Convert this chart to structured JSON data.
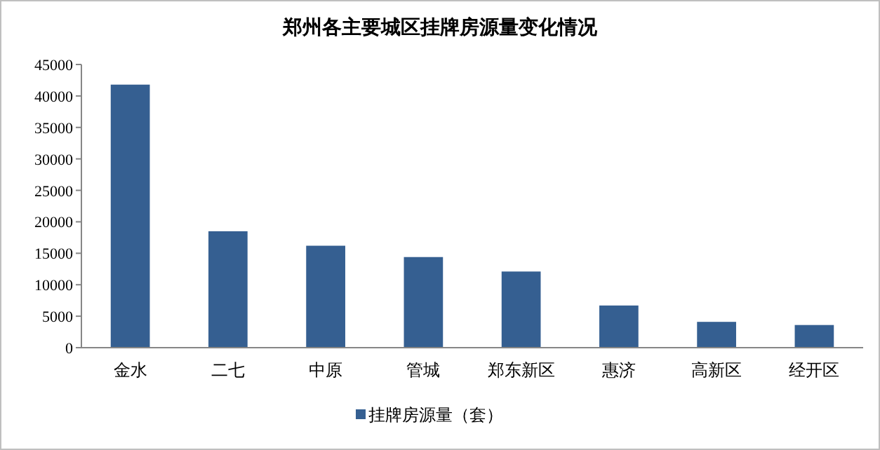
{
  "chart_data": {
    "type": "bar",
    "title": "郑州各主要城区挂牌房源量变化情况",
    "categories": [
      "金水",
      "二七",
      "中原",
      "管城",
      "郑东新区",
      "惠济",
      "高新区",
      "经开区"
    ],
    "series": [
      {
        "name": "挂牌房源量（套）",
        "color": "#355f91",
        "values": [
          41800,
          18500,
          16200,
          14400,
          12100,
          6700,
          4100,
          3600
        ]
      }
    ],
    "ylim": [
      0,
      45000
    ],
    "yticks": [
      0,
      5000,
      10000,
      15000,
      20000,
      25000,
      30000,
      35000,
      40000,
      45000
    ],
    "grid": false,
    "legend": "bottom"
  }
}
